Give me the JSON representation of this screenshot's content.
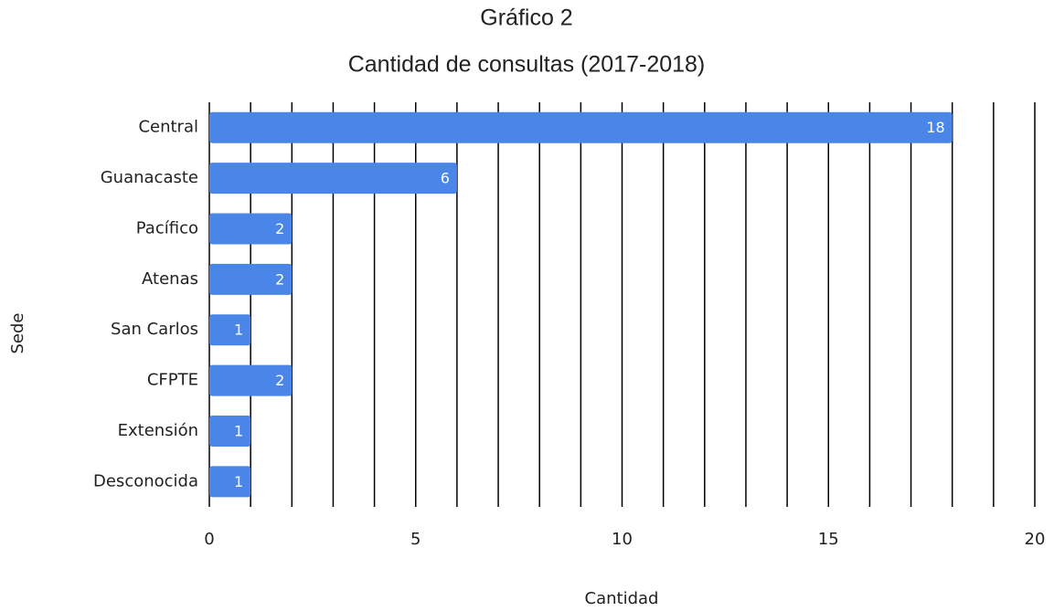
{
  "chart_data": {
    "type": "barh",
    "title": "Gráfico 2",
    "subtitle": "Cantidad de consultas (2017-2018)",
    "x_label": "Cantidad",
    "y_label": "Sede",
    "categories": [
      "Central",
      "Guanacaste",
      "Pacífico",
      "Atenas",
      "San Carlos",
      "CFPTE",
      "Extensión",
      "Desconocida"
    ],
    "values": [
      18,
      6,
      2,
      2,
      1,
      2,
      1,
      1
    ],
    "color": "#4a86e8",
    "xlim": [
      0,
      20
    ],
    "xticks": [
      0,
      5,
      10,
      15,
      20
    ],
    "grid_x": [
      0,
      1,
      2,
      3,
      4,
      5,
      6,
      7,
      8,
      9,
      10,
      11,
      12,
      13,
      14,
      15,
      16,
      17,
      18,
      19,
      20
    ],
    "grid": true
  }
}
